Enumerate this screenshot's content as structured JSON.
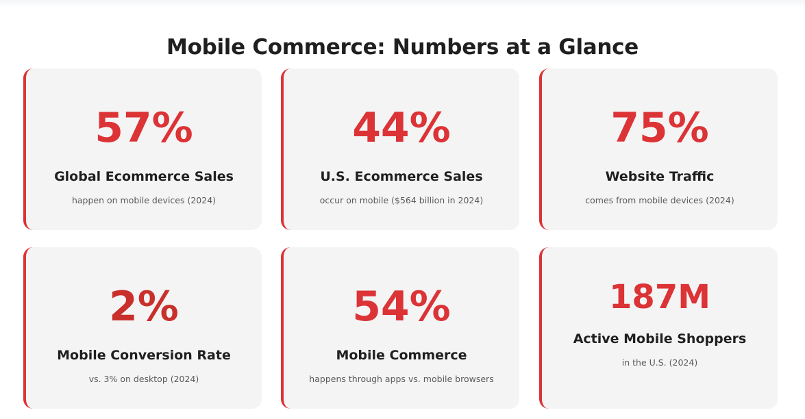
{
  "title": "Mobile Commerce: Numbers at a Glance",
  "accent_color": "#dc3336",
  "stats": [
    {
      "value": "57%",
      "label": "Global Ecommerce Sales",
      "description": "happen on mobile devices (2024)"
    },
    {
      "value": "44%",
      "label": "U.S. Ecommerce Sales",
      "description": "occur on mobile ($564 billion in 2024)"
    },
    {
      "value": "75%",
      "label": "Website Traffic",
      "description": "comes from mobile devices (2024)"
    },
    {
      "value": "2%",
      "label": "Mobile Conversion Rate",
      "description": "vs. 3% on desktop (2024)"
    },
    {
      "value": "54%",
      "label": "Mobile Commerce",
      "description": "happens through apps vs. mobile browsers"
    },
    {
      "value": "187M",
      "label": "Active Mobile Shoppers",
      "description": "in the U.S. (2024)"
    }
  ]
}
